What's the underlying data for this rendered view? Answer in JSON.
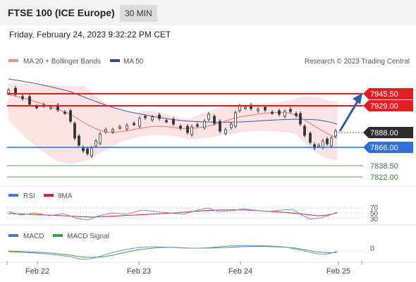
{
  "header": {
    "title": "FTSE 100 (ICE Europe)",
    "timeframe": "30 MIN"
  },
  "timestamp": "Friday, February 24, 2023 9:32:22 PM CET",
  "legend": {
    "bollinger": "MA 20 + Bollinger Bands",
    "ma50": "MA 50",
    "copyright": "Research © 2023 Trading Central",
    "bollinger_color": "#f28b82",
    "ma50_color": "#2b4d8c"
  },
  "levels": {
    "r2": "7945.50",
    "r1": "7929.00",
    "last": "7888.00",
    "pivot": "7866.00",
    "s1": "7838.50",
    "s2": "7822.00",
    "resistance_color": "#e02020",
    "pivot_color": "#2f6fd6",
    "support_color": "#4caf50"
  },
  "rsi": {
    "label": "RSI",
    "ma_label": "9MA",
    "ticks": [
      "70",
      "50",
      "30"
    ],
    "color": "#4d73d9",
    "ma_color": "#e02020"
  },
  "macd": {
    "label": "MACD",
    "signal_label": "MACD Signal",
    "zero": "0",
    "color": "#4d73d9",
    "signal_color": "#3aa33a"
  },
  "xaxis": {
    "labels": [
      "Feb 22",
      "Feb 23",
      "Feb 24",
      "Feb 25"
    ]
  },
  "chart_data": {
    "type": "candlestick",
    "price_levels": [
      7945.5,
      7929.0,
      7888.0,
      7866.0,
      7838.5,
      7822.0
    ],
    "x_labels": [
      "Feb 22",
      "Feb 23",
      "Feb 24",
      "Feb 25"
    ],
    "rsi_levels": [
      70,
      50,
      30
    ],
    "macd_level": 0,
    "outlook": "bullish"
  }
}
